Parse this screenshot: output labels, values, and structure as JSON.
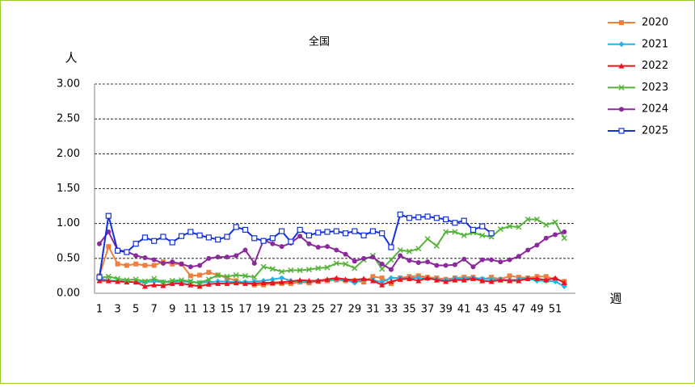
{
  "chart_data": {
    "type": "line",
    "title": "全国",
    "y_label": "人",
    "x_label": "週",
    "categories": [
      1,
      null,
      3,
      null,
      5,
      null,
      7,
      null,
      9,
      null,
      11,
      null,
      13,
      null,
      15,
      null,
      17,
      null,
      19,
      null,
      21,
      null,
      23,
      null,
      25,
      null,
      27,
      null,
      29,
      null,
      31,
      null,
      33,
      null,
      35,
      null,
      37,
      null,
      39,
      null,
      41,
      null,
      43,
      null,
      45,
      null,
      47,
      null,
      49,
      null,
      51,
      null
    ],
    "ylim": [
      0,
      3
    ],
    "yticks": [
      {
        "value": 0,
        "label": "0.00"
      },
      {
        "value": 0.5,
        "label": "0.50"
      },
      {
        "value": 1,
        "label": "1.00"
      },
      {
        "value": 1.5,
        "label": "1.50"
      },
      {
        "value": 2,
        "label": "2.00"
      },
      {
        "value": 2.5,
        "label": "2.50"
      },
      {
        "value": 3,
        "label": "3.00"
      }
    ],
    "grid": true,
    "series": [
      {
        "name": "2020",
        "color": "#f07f3c",
        "marker": "square",
        "values": [
          0.25,
          0.67,
          0.42,
          0.4,
          0.42,
          0.4,
          0.4,
          0.45,
          0.42,
          0.42,
          0.25,
          0.26,
          0.3,
          0.26,
          0.22,
          0.18,
          0.15,
          0.12,
          0.12,
          0.14,
          0.14,
          0.14,
          0.16,
          0.15,
          0.17,
          0.18,
          0.19,
          0.18,
          0.18,
          0.16,
          0.24,
          0.22,
          0.14,
          0.22,
          0.24,
          0.25,
          0.23,
          0.22,
          0.2,
          0.22,
          0.23,
          0.23,
          0.2,
          0.23,
          0.2,
          0.25,
          0.23,
          0.22,
          0.24,
          0.24,
          0.2,
          0.17
        ]
      },
      {
        "name": "2021",
        "color": "#1fb5e8",
        "marker": "diamond",
        "values": [
          0.22,
          0.18,
          0.18,
          0.17,
          0.16,
          0.16,
          0.17,
          0.16,
          0.16,
          0.17,
          0.16,
          0.15,
          0.16,
          0.17,
          0.17,
          0.16,
          0.16,
          0.17,
          0.18,
          0.2,
          0.22,
          0.18,
          0.17,
          0.17,
          0.18,
          0.19,
          0.2,
          0.19,
          0.15,
          0.2,
          0.19,
          0.16,
          0.22,
          0.22,
          0.22,
          0.22,
          0.21,
          0.2,
          0.19,
          0.21,
          0.21,
          0.22,
          0.21,
          0.2,
          0.2,
          0.19,
          0.2,
          0.21,
          0.18,
          0.18,
          0.17,
          0.1
        ]
      },
      {
        "name": "2022",
        "color": "#e8141f",
        "marker": "triangle",
        "values": [
          0.18,
          0.18,
          0.17,
          0.16,
          0.16,
          0.1,
          0.12,
          0.11,
          0.14,
          0.14,
          0.12,
          0.1,
          0.13,
          0.14,
          0.14,
          0.15,
          0.14,
          0.14,
          0.15,
          0.15,
          0.16,
          0.17,
          0.19,
          0.18,
          0.18,
          0.2,
          0.22,
          0.2,
          0.19,
          0.21,
          0.18,
          0.12,
          0.17,
          0.2,
          0.21,
          0.18,
          0.22,
          0.19,
          0.17,
          0.19,
          0.19,
          0.21,
          0.18,
          0.17,
          0.19,
          0.18,
          0.18,
          0.21,
          0.21,
          0.19,
          0.22,
          0.15
        ]
      },
      {
        "name": "2023",
        "color": "#56b33a",
        "marker": "x",
        "values": [
          0.22,
          0.24,
          0.21,
          0.19,
          0.2,
          0.17,
          0.21,
          0.16,
          0.18,
          0.19,
          0.17,
          0.15,
          0.2,
          0.26,
          0.24,
          0.26,
          0.25,
          0.23,
          0.38,
          0.35,
          0.31,
          0.33,
          0.33,
          0.34,
          0.36,
          0.37,
          0.43,
          0.42,
          0.36,
          0.48,
          0.54,
          0.35,
          0.48,
          0.62,
          0.6,
          0.64,
          0.78,
          0.68,
          0.88,
          0.88,
          0.83,
          0.87,
          0.83,
          0.81,
          0.92,
          0.96,
          0.95,
          1.06,
          1.06,
          0.98,
          1.02,
          0.79
        ]
      },
      {
        "name": "2024",
        "color": "#8b2a9b",
        "marker": "circle",
        "values": [
          0.71,
          0.88,
          0.62,
          0.6,
          0.54,
          0.51,
          0.48,
          0.43,
          0.45,
          0.42,
          0.38,
          0.4,
          0.5,
          0.52,
          0.52,
          0.54,
          0.62,
          0.43,
          0.76,
          0.71,
          0.67,
          0.72,
          0.82,
          0.71,
          0.66,
          0.67,
          0.62,
          0.56,
          0.46,
          0.5,
          0.52,
          0.42,
          0.34,
          0.54,
          0.47,
          0.44,
          0.45,
          0.4,
          0.4,
          0.41,
          0.49,
          0.38,
          0.48,
          0.48,
          0.45,
          0.48,
          0.53,
          0.62,
          0.69,
          0.79,
          0.84,
          0.88
        ]
      },
      {
        "name": "2025",
        "color": "#1230e0",
        "marker": "open-square",
        "values": [
          0.23,
          1.11,
          0.61,
          0.59,
          0.71,
          0.8,
          0.75,
          0.81,
          0.73,
          0.82,
          0.88,
          0.83,
          0.8,
          0.77,
          0.81,
          0.95,
          0.91,
          0.79,
          0.75,
          0.79,
          0.89,
          0.74,
          0.91,
          0.83,
          0.87,
          0.88,
          0.89,
          0.86,
          0.89,
          0.83,
          0.89,
          0.86,
          0.66,
          1.13,
          1.08,
          1.09,
          1.1,
          1.08,
          1.06,
          1.01,
          1.04,
          0.91,
          0.96,
          0.86,
          null,
          null,
          null,
          null,
          null,
          null,
          null,
          null
        ]
      }
    ]
  }
}
